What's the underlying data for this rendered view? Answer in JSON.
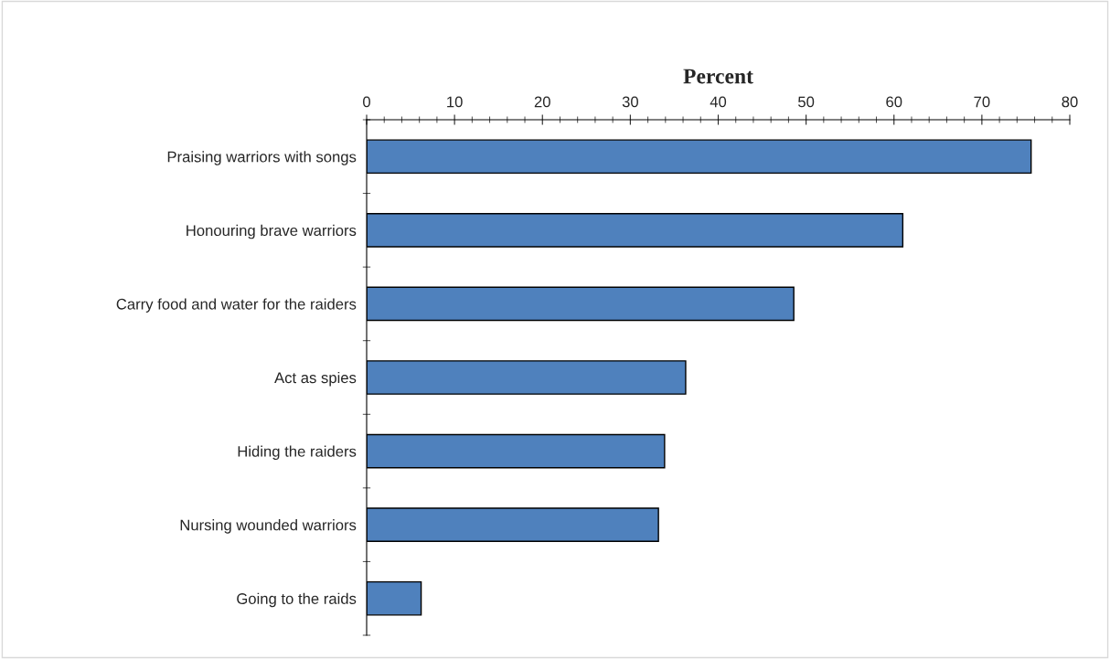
{
  "chart_data": {
    "type": "bar",
    "orientation": "horizontal",
    "xlabel": "Percent",
    "categories": [
      "Praising warriors with songs",
      "Honouring brave warriors",
      "Carry food and water for the raiders",
      "Act as spies",
      "Hiding the raiders",
      "Nursing wounded warriors",
      "Going to the raids"
    ],
    "values": [
      75.6,
      61.0,
      48.6,
      36.3,
      33.9,
      33.2,
      6.2
    ],
    "color": "#4f81bd",
    "xlim": [
      0,
      80
    ],
    "xticks": [
      0,
      {
        "value": 2,
        "label": null
      },
      {
        "value": 4,
        "label": null
      },
      {
        "value": 6,
        "label": null
      },
      {
        "value": 8,
        "label": null
      },
      10,
      {
        "value": 12,
        "label": null
      },
      {
        "value": 14,
        "label": null
      },
      {
        "value": 16,
        "label": null
      },
      {
        "value": 18,
        "label": null
      },
      20,
      {
        "value": 22,
        "label": null
      },
      {
        "value": 24,
        "label": null
      },
      {
        "value": 26,
        "label": null
      },
      {
        "value": 28,
        "label": null
      },
      30,
      {
        "value": 32,
        "label": null
      },
      {
        "value": 34,
        "label": null
      },
      {
        "value": 36,
        "label": null
      },
      {
        "value": 38,
        "label": null
      },
      40,
      {
        "value": 42,
        "label": null
      },
      {
        "value": 44,
        "label": null
      },
      {
        "value": 46,
        "label": null
      },
      {
        "value": 48,
        "label": null
      },
      50,
      {
        "value": 52,
        "label": null
      },
      {
        "value": 54,
        "label": null
      },
      {
        "value": 56,
        "label": null
      },
      {
        "value": 58,
        "label": null
      },
      60,
      {
        "value": 62,
        "label": null
      },
      {
        "value": 64,
        "label": null
      },
      {
        "value": 66,
        "label": null
      },
      {
        "value": 68,
        "label": null
      },
      70,
      {
        "value": 72,
        "label": null
      },
      {
        "value": 74,
        "label": null
      },
      {
        "value": 76,
        "label": null
      },
      {
        "value": 78,
        "label": null
      },
      80
    ],
    "grid": false,
    "legend": false
  }
}
